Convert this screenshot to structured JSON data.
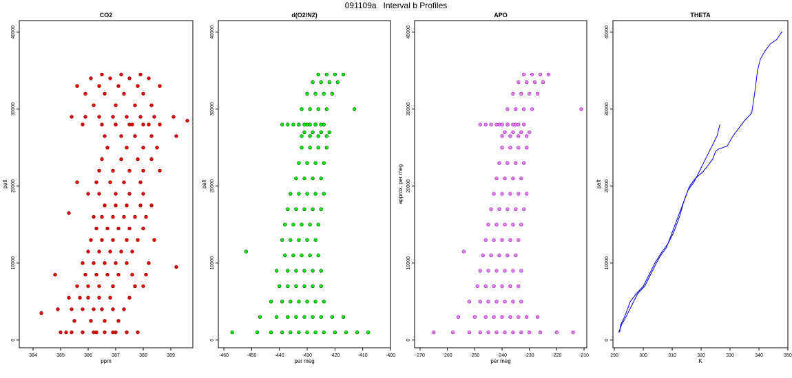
{
  "figure": {
    "title": "091109a   Interval b Profiles"
  },
  "chart_data": [
    {
      "type": "scatter",
      "title": "CO2",
      "xlabel": "ppm",
      "ylabel": "palt",
      "xlim": [
        383.5,
        389.8
      ],
      "ylim": [
        -1000,
        41500
      ],
      "xticks": [
        384,
        385,
        386,
        387,
        388,
        389
      ],
      "yticks": [
        0,
        10000,
        20000,
        30000,
        40000
      ],
      "edge_color": "#8b0000",
      "fill_color": "#ff0000",
      "x": [
        385.2,
        385.8,
        386.3,
        386.9,
        387.4,
        385.5,
        386.1,
        386.6,
        387.1,
        384.3,
        384.9,
        385.4,
        385.8,
        386.2,
        386.5,
        386.9,
        387.3,
        385.3,
        385.7,
        386.0,
        386.4,
        386.8,
        387.5,
        385.6,
        386.0,
        386.4,
        386.9,
        387.7,
        388.0,
        384.8,
        385.9,
        386.3,
        386.7,
        387.1,
        387.6,
        388.1,
        389.2,
        385.8,
        386.2,
        386.6,
        387.0,
        387.4,
        388.2,
        386.0,
        386.4,
        386.8,
        387.2,
        387.6,
        386.1,
        386.5,
        386.9,
        387.4,
        387.8,
        388.4,
        386.3,
        386.7,
        387.1,
        387.5,
        388.0,
        386.2,
        386.5,
        386.9,
        387.3,
        387.7,
        388.1,
        385.3,
        386.6,
        387.0,
        387.4,
        387.9,
        388.3,
        386.0,
        386.4,
        387.0,
        387.5,
        388.0,
        385.6,
        386.3,
        386.8,
        387.3,
        387.9,
        386.4,
        386.9,
        387.5,
        388.0,
        388.6,
        386.5,
        387.2,
        387.8,
        388.3,
        386.7,
        387.4,
        388.0,
        388.5,
        386.6,
        387.2,
        387.7,
        388.3,
        389.2,
        386.5,
        387.0,
        387.6,
        388.2,
        385.8,
        387.0,
        387.5,
        388.0,
        388.6,
        389.6,
        385.4,
        385.9,
        386.4,
        386.9,
        387.4,
        387.9,
        388.4,
        389.1,
        386.2,
        387.0,
        387.7,
        388.3,
        385.9,
        386.6,
        387.3,
        388.0,
        385.6,
        386.4,
        387.1,
        387.8,
        388.6,
        386.1,
        386.8,
        387.5,
        388.2,
        386.5,
        387.2,
        387.9,
        385.0,
        385.4,
        385.8,
        386.2,
        386.6,
        387.0,
        387.4,
        387.8
      ],
      "y": [
        1000,
        1000,
        1000,
        1000,
        1000,
        2500,
        2500,
        2500,
        2500,
        3500,
        4000,
        4000,
        4000,
        4000,
        4000,
        4000,
        4000,
        5500,
        5500,
        5500,
        5500,
        5500,
        5500,
        7000,
        7000,
        7000,
        7000,
        7000,
        7000,
        8500,
        8500,
        8500,
        8500,
        8500,
        8500,
        8500,
        9500,
        10000,
        10000,
        10000,
        10000,
        10000,
        10000,
        11500,
        11500,
        11500,
        11500,
        11500,
        13000,
        13000,
        13000,
        13000,
        13000,
        13000,
        14500,
        14500,
        14500,
        14500,
        14500,
        16000,
        16000,
        16000,
        16000,
        16000,
        16000,
        16500,
        17500,
        17500,
        17500,
        17500,
        17500,
        19000,
        19000,
        19000,
        19000,
        19000,
        20500,
        20500,
        20500,
        20500,
        20500,
        22000,
        22000,
        22000,
        22000,
        22000,
        23500,
        23500,
        23500,
        23500,
        25000,
        25000,
        25000,
        25000,
        26500,
        26500,
        26500,
        26500,
        26500,
        28000,
        28000,
        28000,
        28000,
        28000,
        28000,
        28000,
        28000,
        28000,
        28500,
        29000,
        29000,
        29000,
        29000,
        29000,
        29000,
        29000,
        29000,
        30500,
        30500,
        30500,
        30500,
        32000,
        32000,
        32000,
        32000,
        33000,
        33000,
        33000,
        33000,
        33000,
        34000,
        34000,
        34000,
        34000,
        34500,
        34500,
        34500,
        1000,
        1000,
        1000,
        1000,
        1000,
        1000,
        1000,
        1000
      ]
    },
    {
      "type": "scatter",
      "title": "d(O2/N2)",
      "xlabel": "per meg",
      "ylabel": "palt",
      "xlim": [
        -462,
        -400
      ],
      "ylim": [
        -1000,
        41500
      ],
      "xticks": [
        -460,
        -450,
        -440,
        -430,
        -420,
        -410,
        -400
      ],
      "yticks": [
        0,
        10000,
        20000,
        30000,
        40000
      ],
      "edge_color": "#006400",
      "fill_color": "#00ff00",
      "x": [
        -457,
        -448,
        -443,
        -439,
        -436,
        -433,
        -430,
        -427,
        -424,
        -420,
        -416,
        -412,
        -408,
        -447,
        -441,
        -437,
        -434,
        -431,
        -428,
        -425,
        -421,
        -417,
        -443,
        -439,
        -436,
        -433,
        -430,
        -427,
        -424,
        -440,
        -437,
        -434,
        -431,
        -428,
        -425,
        -452,
        -441,
        -437,
        -434,
        -431,
        -428,
        -425,
        -438,
        -435,
        -432,
        -429,
        -426,
        -439,
        -436,
        -433,
        -430,
        -427,
        -438,
        -435,
        -432,
        -429,
        -426,
        -437,
        -434,
        -431,
        -428,
        -425,
        -436,
        -433,
        -430,
        -427,
        -424,
        -434,
        -431,
        -428,
        -425,
        -433,
        -430,
        -427,
        -424,
        -432,
        -429,
        -426,
        -423,
        -431,
        -428,
        -425,
        -422,
        -432,
        -429,
        -426,
        -423,
        -433,
        -430,
        -427,
        -424,
        -439,
        -437,
        -435,
        -433,
        -431,
        -429,
        -427,
        -425,
        -432,
        -429,
        -426,
        -423,
        -413,
        -430,
        -427,
        -424,
        -421,
        -428,
        -425,
        -422,
        -419,
        -426,
        -423,
        -420,
        -417
      ],
      "y": [
        1000,
        1000,
        1000,
        1000,
        1000,
        1000,
        1000,
        1000,
        1000,
        1000,
        1000,
        1000,
        1000,
        3000,
        3000,
        3000,
        3000,
        3000,
        3000,
        3000,
        3000,
        3000,
        5000,
        5000,
        5000,
        5000,
        5000,
        5000,
        5000,
        7000,
        7000,
        7000,
        7000,
        7000,
        7000,
        11500,
        9000,
        9000,
        9000,
        9000,
        9000,
        9000,
        11000,
        11000,
        11000,
        11000,
        11000,
        13000,
        13000,
        13000,
        13000,
        13000,
        15000,
        15000,
        15000,
        15000,
        15000,
        17000,
        17000,
        17000,
        17000,
        17000,
        19000,
        19000,
        19000,
        19000,
        19000,
        21000,
        21000,
        21000,
        21000,
        23000,
        23000,
        23000,
        23000,
        25000,
        25000,
        25000,
        25000,
        27000,
        27000,
        27000,
        27000,
        26500,
        26500,
        26500,
        26500,
        28000,
        28000,
        28000,
        28000,
        28000,
        28000,
        28000,
        28000,
        28000,
        28000,
        28000,
        28000,
        30000,
        30000,
        30000,
        30000,
        30000,
        32000,
        32000,
        32000,
        32000,
        33500,
        33500,
        33500,
        33500,
        34500,
        34500,
        34500,
        34500
      ]
    },
    {
      "type": "scatter",
      "title": "APO",
      "xlabel": "per meg",
      "ylabel": "approx. per meg",
      "xlim": [
        -272,
        -209
      ],
      "ylim": [
        -1000,
        41500
      ],
      "xticks": [
        -270,
        -260,
        -250,
        -240,
        -230,
        -220,
        -210
      ],
      "yticks": [
        0,
        10000,
        20000,
        30000,
        40000
      ],
      "edge_color": "#9932cc",
      "fill_color": "#ee82ee",
      "x": [
        -265,
        -258,
        -252,
        -248,
        -245,
        -242,
        -239,
        -236,
        -233,
        -230,
        -226,
        -220,
        -214,
        -256,
        -250,
        -246,
        -243,
        -240,
        -237,
        -234,
        -231,
        -227,
        -252,
        -248,
        -245,
        -242,
        -239,
        -236,
        -233,
        -249,
        -246,
        -243,
        -240,
        -237,
        -234,
        -254,
        -248,
        -245,
        -242,
        -239,
        -236,
        -233,
        -247,
        -244,
        -241,
        -238,
        -235,
        -246,
        -243,
        -240,
        -237,
        -234,
        -245,
        -242,
        -239,
        -236,
        -233,
        -244,
        -241,
        -238,
        -235,
        -232,
        -243,
        -240,
        -237,
        -234,
        -231,
        -242,
        -239,
        -236,
        -233,
        -241,
        -238,
        -235,
        -232,
        -240,
        -237,
        -234,
        -231,
        -239,
        -236,
        -233,
        -230,
        -240,
        -237,
        -234,
        -231,
        -241,
        -238,
        -235,
        -232,
        -248,
        -246,
        -244,
        -242,
        -240,
        -238,
        -236,
        -234,
        -238,
        -235,
        -232,
        -229,
        -211,
        -236,
        -233,
        -230,
        -227,
        -234,
        -231,
        -228,
        -225,
        -232,
        -229,
        -226,
        -223
      ],
      "y": [
        1000,
        1000,
        1000,
        1000,
        1000,
        1000,
        1000,
        1000,
        1000,
        1000,
        1000,
        1000,
        1000,
        3000,
        3000,
        3000,
        3000,
        3000,
        3000,
        3000,
        3000,
        3000,
        5000,
        5000,
        5000,
        5000,
        5000,
        5000,
        5000,
        7000,
        7000,
        7000,
        7000,
        7000,
        7000,
        11500,
        9000,
        9000,
        9000,
        9000,
        9000,
        9000,
        11000,
        11000,
        11000,
        11000,
        11000,
        13000,
        13000,
        13000,
        13000,
        13000,
        15000,
        15000,
        15000,
        15000,
        15000,
        17000,
        17000,
        17000,
        17000,
        17000,
        19000,
        19000,
        19000,
        19000,
        19000,
        21000,
        21000,
        21000,
        21000,
        23000,
        23000,
        23000,
        23000,
        25000,
        25000,
        25000,
        25000,
        27000,
        27000,
        27000,
        27000,
        26500,
        26500,
        26500,
        26500,
        28000,
        28000,
        28000,
        28000,
        28000,
        28000,
        28000,
        28000,
        28000,
        28000,
        28000,
        28000,
        30000,
        30000,
        30000,
        30000,
        30000,
        32000,
        32000,
        32000,
        32000,
        33500,
        33500,
        33500,
        33500,
        34500,
        34500,
        34500,
        34500
      ]
    },
    {
      "type": "line",
      "title": "THETA",
      "xlabel": "K",
      "ylabel": "palt",
      "xlim": [
        289.5,
        350
      ],
      "ylim": [
        -1000,
        41500
      ],
      "xticks": [
        290,
        300,
        310,
        320,
        330,
        340,
        350
      ],
      "yticks": [
        0,
        10000,
        20000,
        30000,
        40000
      ],
      "line_color": "#0000cd",
      "series": [
        {
          "x": [
            291.8,
            292.2,
            293.5,
            295.5,
            297.5,
            300.0,
            302.0,
            304.0,
            306.5,
            308.5,
            310.5,
            312.5,
            314.0,
            316.0,
            318.0,
            319.5,
            320.5,
            322.0,
            324.0,
            325.0,
            326.0,
            329.0,
            331.0,
            333.0,
            335.0,
            337.5,
            338.5,
            339.5,
            340.5,
            342.0,
            344.0,
            346.0,
            347.0,
            347.8,
            348.2
          ],
          "y": [
            1000,
            2000,
            3000,
            5000,
            6000,
            7000,
            8500,
            10000,
            11500,
            12500,
            14000,
            16000,
            18000,
            20000,
            21000,
            21500,
            21800,
            22500,
            23500,
            24500,
            24800,
            25200,
            26500,
            27500,
            28500,
            29500,
            32000,
            35000,
            36500,
            37500,
            38500,
            39000,
            39500,
            40000,
            40000
          ]
        },
        {
          "x": [
            291.5,
            292.5,
            294.0,
            296.0,
            298.0,
            300.5,
            302.5,
            304.5,
            306.0,
            308.0,
            309.5,
            311.0,
            312.5,
            314.0,
            315.5,
            317.5,
            319.5,
            321.5,
            323.5,
            325.5,
            326.5
          ],
          "y": [
            1000,
            2000,
            3000,
            4500,
            6000,
            7000,
            8500,
            10000,
            11000,
            12000,
            13500,
            15000,
            16500,
            18000,
            19500,
            20500,
            22000,
            23500,
            25000,
            26500,
            28000
          ]
        }
      ]
    }
  ]
}
